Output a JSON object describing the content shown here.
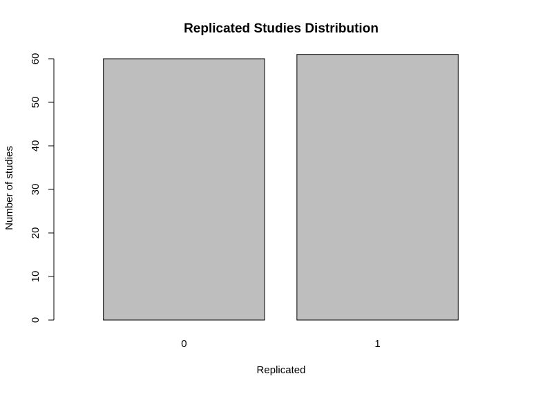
{
  "chart_data": {
    "type": "bar",
    "title": "Replicated Studies Distribution",
    "xlabel": "Replicated",
    "ylabel": "Number of studies",
    "categories": [
      "0",
      "1"
    ],
    "values": [
      60,
      61
    ],
    "ylim": [
      0,
      60
    ],
    "yticks": [
      0,
      10,
      20,
      30,
      40,
      50,
      60
    ],
    "ytick_labels": [
      "0",
      "10",
      "20",
      "30",
      "40",
      "50",
      "60"
    ],
    "grid": false,
    "legend": "none",
    "bar_color": "#bebebe",
    "bar_edge_color": "#000000"
  }
}
